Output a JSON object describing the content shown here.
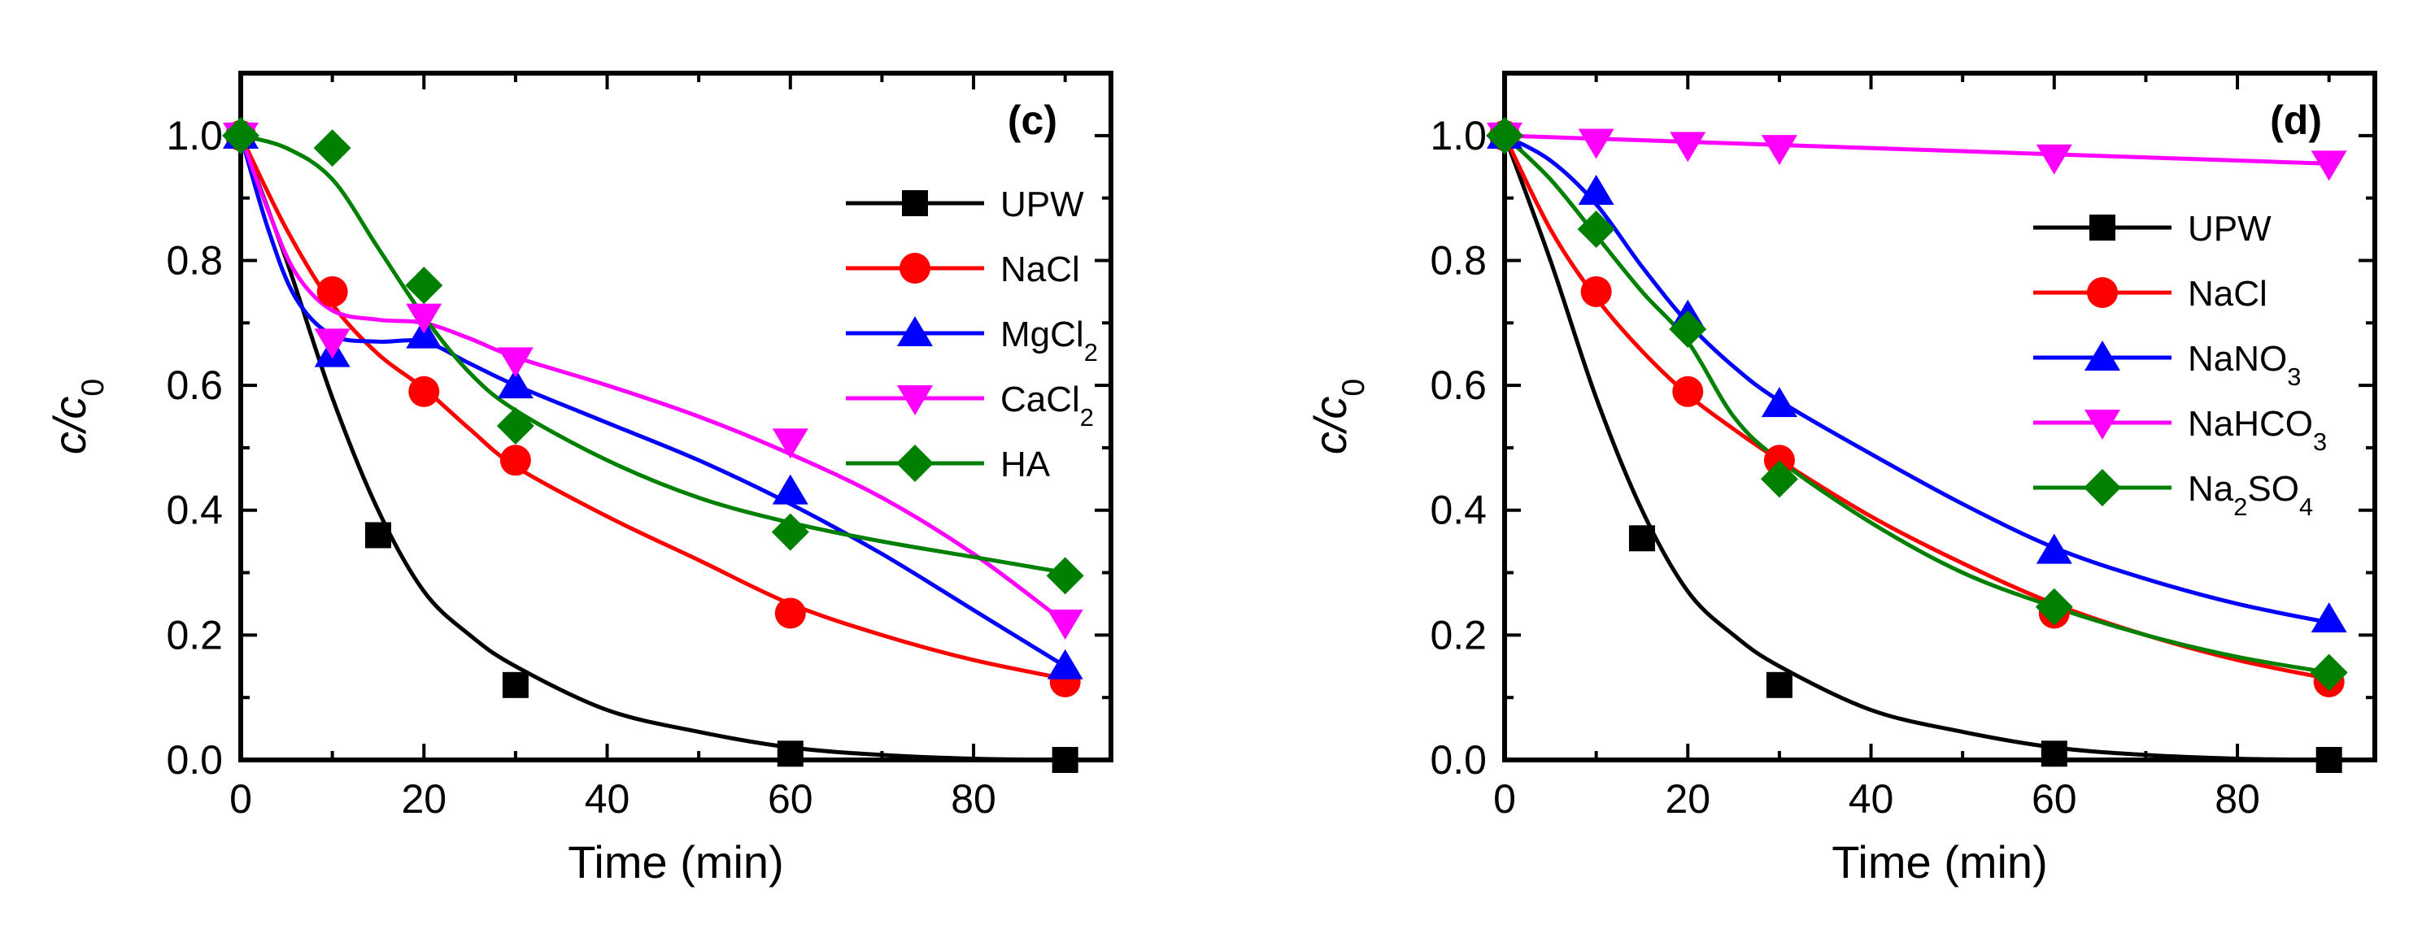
{
  "chart_data": [
    {
      "type": "scatter",
      "panel_label": "(c)",
      "xlabel": "Time (min)",
      "ylabel": {
        "main": "c/c",
        "sub": "0"
      },
      "xlim": [
        0,
        95
      ],
      "ylim": [
        0,
        1.1
      ],
      "xticks": [
        0,
        20,
        40,
        60,
        80
      ],
      "yticks": [
        0.0,
        0.2,
        0.4,
        0.6,
        0.8,
        1.0
      ],
      "ytick_labels": [
        "0.0",
        "0.2",
        "0.4",
        "0.6",
        "0.8",
        "1.0"
      ],
      "legend_position": "upper-right",
      "series": [
        {
          "name": "UPW",
          "sub": "",
          "color": "#000000",
          "marker": "square",
          "x": [
            0,
            15,
            30,
            60,
            90
          ],
          "y": [
            1.0,
            0.36,
            0.12,
            0.01,
            0.0
          ],
          "fit": [
            [
              0,
              1.0
            ],
            [
              5,
              0.8
            ],
            [
              10,
              0.58
            ],
            [
              15,
              0.4
            ],
            [
              20,
              0.27
            ],
            [
              25,
              0.2
            ],
            [
              30,
              0.15
            ],
            [
              40,
              0.08
            ],
            [
              50,
              0.045
            ],
            [
              60,
              0.02
            ],
            [
              70,
              0.008
            ],
            [
              80,
              0.002
            ],
            [
              90,
              0.0
            ]
          ]
        },
        {
          "name": "NaCl",
          "sub": "",
          "color": "#ff0000",
          "marker": "circle",
          "x": [
            0,
            10,
            20,
            30,
            60,
            90
          ],
          "y": [
            1.0,
            0.75,
            0.59,
            0.48,
            0.235,
            0.125
          ],
          "fit": [
            [
              0,
              1.0
            ],
            [
              5,
              0.85
            ],
            [
              10,
              0.73
            ],
            [
              15,
              0.65
            ],
            [
              20,
              0.595
            ],
            [
              25,
              0.53
            ],
            [
              30,
              0.47
            ],
            [
              40,
              0.39
            ],
            [
              50,
              0.32
            ],
            [
              60,
              0.25
            ],
            [
              70,
              0.2
            ],
            [
              80,
              0.16
            ],
            [
              90,
              0.13
            ]
          ]
        },
        {
          "name": "MgCl",
          "sub": "2",
          "color": "#0000ff",
          "marker": "triangle-up",
          "x": [
            0,
            10,
            20,
            30,
            60,
            90
          ],
          "y": [
            1.0,
            0.65,
            0.68,
            0.6,
            0.43,
            0.15
          ],
          "fit": [
            [
              0,
              1.0
            ],
            [
              3,
              0.85
            ],
            [
              6,
              0.74
            ],
            [
              10,
              0.68
            ],
            [
              15,
              0.67
            ],
            [
              20,
              0.67
            ],
            [
              25,
              0.635
            ],
            [
              30,
              0.6
            ],
            [
              40,
              0.54
            ],
            [
              50,
              0.48
            ],
            [
              60,
              0.41
            ],
            [
              70,
              0.33
            ],
            [
              80,
              0.24
            ],
            [
              90,
              0.15
            ]
          ]
        },
        {
          "name": "CaCl",
          "sub": "2",
          "color": "#ff00ff",
          "marker": "triangle-down",
          "x": [
            0,
            10,
            20,
            30,
            60,
            90
          ],
          "y": [
            1.0,
            0.67,
            0.71,
            0.64,
            0.51,
            0.22
          ],
          "fit": [
            [
              0,
              1.0
            ],
            [
              3,
              0.88
            ],
            [
              6,
              0.78
            ],
            [
              10,
              0.72
            ],
            [
              15,
              0.705
            ],
            [
              20,
              0.7
            ],
            [
              25,
              0.675
            ],
            [
              30,
              0.645
            ],
            [
              40,
              0.6
            ],
            [
              50,
              0.55
            ],
            [
              60,
              0.49
            ],
            [
              70,
              0.42
            ],
            [
              80,
              0.33
            ],
            [
              90,
              0.22
            ]
          ]
        },
        {
          "name": "HA",
          "sub": "",
          "color": "#008000",
          "marker": "diamond",
          "x": [
            0,
            10,
            20,
            30,
            60,
            90
          ],
          "y": [
            1.0,
            0.98,
            0.76,
            0.535,
            0.365,
            0.295
          ],
          "fit": [
            [
              0,
              1.0
            ],
            [
              5,
              0.98
            ],
            [
              10,
              0.93
            ],
            [
              15,
              0.82
            ],
            [
              20,
              0.71
            ],
            [
              25,
              0.62
            ],
            [
              30,
              0.56
            ],
            [
              40,
              0.48
            ],
            [
              50,
              0.42
            ],
            [
              60,
              0.38
            ],
            [
              70,
              0.35
            ],
            [
              80,
              0.325
            ],
            [
              90,
              0.3
            ]
          ]
        }
      ]
    },
    {
      "type": "scatter",
      "panel_label": "(d)",
      "xlabel": "Time (min)",
      "ylabel": {
        "main": "c/c",
        "sub": "0"
      },
      "xlim": [
        0,
        95
      ],
      "ylim": [
        0,
        1.1
      ],
      "xticks": [
        0,
        20,
        40,
        60,
        80
      ],
      "yticks": [
        0.0,
        0.2,
        0.4,
        0.6,
        0.8,
        1.0
      ],
      "ytick_labels": [
        "0.0",
        "0.2",
        "0.4",
        "0.6",
        "0.8",
        "1.0"
      ],
      "legend_position": "center-right",
      "series": [
        {
          "name": "UPW",
          "sub": "",
          "color": "#000000",
          "marker": "square",
          "x": [
            0,
            15,
            30,
            60,
            90
          ],
          "y": [
            1.0,
            0.355,
            0.12,
            0.01,
            0.0
          ],
          "fit": [
            [
              0,
              1.0
            ],
            [
              5,
              0.8
            ],
            [
              10,
              0.58
            ],
            [
              15,
              0.4
            ],
            [
              20,
              0.27
            ],
            [
              25,
              0.2
            ],
            [
              30,
              0.15
            ],
            [
              40,
              0.08
            ],
            [
              50,
              0.045
            ],
            [
              60,
              0.02
            ],
            [
              70,
              0.008
            ],
            [
              80,
              0.002
            ],
            [
              90,
              0.0
            ]
          ]
        },
        {
          "name": "NaCl",
          "sub": "",
          "color": "#ff0000",
          "marker": "circle",
          "x": [
            0,
            10,
            20,
            30,
            60,
            90
          ],
          "y": [
            1.0,
            0.75,
            0.59,
            0.48,
            0.235,
            0.125
          ],
          "fit": [
            [
              0,
              1.0
            ],
            [
              5,
              0.85
            ],
            [
              10,
              0.74
            ],
            [
              15,
              0.655
            ],
            [
              20,
              0.585
            ],
            [
              25,
              0.53
            ],
            [
              30,
              0.48
            ],
            [
              40,
              0.39
            ],
            [
              50,
              0.315
            ],
            [
              60,
              0.25
            ],
            [
              70,
              0.2
            ],
            [
              80,
              0.16
            ],
            [
              90,
              0.13
            ]
          ]
        },
        {
          "name": "NaNO",
          "sub": "3",
          "color": "#0000ff",
          "marker": "triangle-up",
          "x": [
            0,
            10,
            20,
            30,
            60,
            90
          ],
          "y": [
            1.0,
            0.91,
            0.71,
            0.57,
            0.335,
            0.225
          ],
          "fit": [
            [
              0,
              1.0
            ],
            [
              5,
              0.96
            ],
            [
              10,
              0.89
            ],
            [
              15,
              0.79
            ],
            [
              20,
              0.7
            ],
            [
              25,
              0.63
            ],
            [
              30,
              0.575
            ],
            [
              40,
              0.49
            ],
            [
              50,
              0.41
            ],
            [
              60,
              0.34
            ],
            [
              70,
              0.29
            ],
            [
              80,
              0.25
            ],
            [
              90,
              0.22
            ]
          ]
        },
        {
          "name": "NaHCO",
          "sub": "3",
          "color": "#ff00ff",
          "marker": "triangle-down",
          "x": [
            0,
            10,
            20,
            30,
            60,
            90
          ],
          "y": [
            1.0,
            0.99,
            0.985,
            0.98,
            0.965,
            0.955
          ],
          "fit": [
            [
              0,
              1.0
            ],
            [
              30,
              0.985
            ],
            [
              60,
              0.97
            ],
            [
              90,
              0.955
            ]
          ]
        },
        {
          "name": "Na",
          "sub": "2",
          "sub2": "4",
          "mid": "SO",
          "color": "#008000",
          "marker": "diamond",
          "x": [
            0,
            10,
            20,
            30,
            60,
            90
          ],
          "y": [
            1.0,
            0.85,
            0.69,
            0.45,
            0.245,
            0.14
          ],
          "fit": [
            [
              0,
              1.0
            ],
            [
              5,
              0.93
            ],
            [
              10,
              0.84
            ],
            [
              15,
              0.75
            ],
            [
              20,
              0.67
            ],
            [
              25,
              0.55
            ],
            [
              30,
              0.48
            ],
            [
              40,
              0.38
            ],
            [
              50,
              0.3
            ],
            [
              60,
              0.245
            ],
            [
              70,
              0.2
            ],
            [
              80,
              0.165
            ],
            [
              90,
              0.14
            ]
          ]
        }
      ]
    }
  ]
}
